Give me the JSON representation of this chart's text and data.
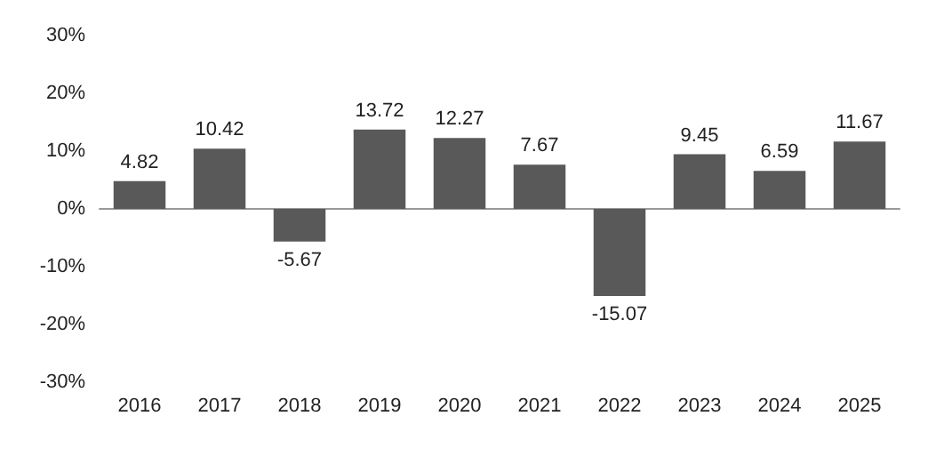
{
  "chart_data": {
    "type": "bar",
    "categories": [
      "2016",
      "2017",
      "2018",
      "2019",
      "2020",
      "2021",
      "2022",
      "2023",
      "2024",
      "2025"
    ],
    "values": [
      4.82,
      10.42,
      -5.67,
      13.72,
      12.27,
      7.67,
      -15.07,
      9.45,
      6.59,
      11.67
    ],
    "color": "#595959",
    "ylim": [
      -30,
      30
    ],
    "yticks": [
      {
        "value": -30,
        "label": "-30%"
      },
      {
        "value": -20,
        "label": "-20%"
      },
      {
        "value": -10,
        "label": "-10%"
      },
      {
        "value": 0,
        "label": "0%"
      },
      {
        "value": 10,
        "label": "10%"
      },
      {
        "value": 20,
        "label": "20%"
      },
      {
        "value": 30,
        "label": "30%"
      }
    ],
    "data_labels": true
  }
}
